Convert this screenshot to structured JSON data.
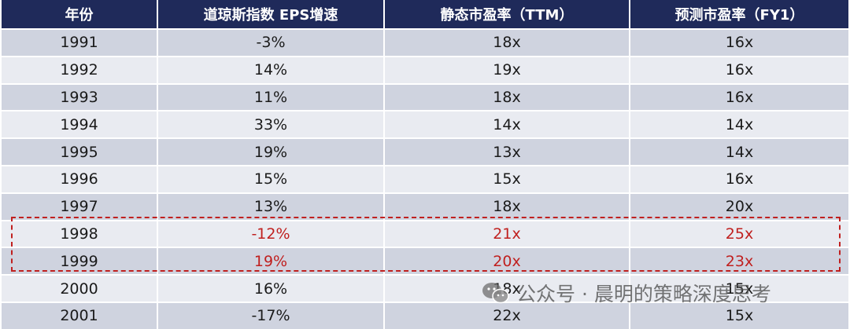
{
  "table": {
    "headers": [
      "年份",
      "道琼斯指数 EPS增速",
      "静态市盈率（TTM）",
      "预测市盈率（FY1）"
    ],
    "rows": [
      {
        "year": "1991",
        "eps_growth": "-3%",
        "pe_ttm": "18x",
        "pe_fy1": "16x"
      },
      {
        "year": "1992",
        "eps_growth": "14%",
        "pe_ttm": "19x",
        "pe_fy1": "16x"
      },
      {
        "year": "1993",
        "eps_growth": "11%",
        "pe_ttm": "18x",
        "pe_fy1": "16x"
      },
      {
        "year": "1994",
        "eps_growth": "33%",
        "pe_ttm": "14x",
        "pe_fy1": "14x"
      },
      {
        "year": "1995",
        "eps_growth": "19%",
        "pe_ttm": "13x",
        "pe_fy1": "14x"
      },
      {
        "year": "1996",
        "eps_growth": "15%",
        "pe_ttm": "15x",
        "pe_fy1": "16x"
      },
      {
        "year": "1997",
        "eps_growth": "13%",
        "pe_ttm": "18x",
        "pe_fy1": "20x"
      },
      {
        "year": "1998",
        "eps_growth": "-12%",
        "pe_ttm": "21x",
        "pe_fy1": "25x"
      },
      {
        "year": "1999",
        "eps_growth": "19%",
        "pe_ttm": "20x",
        "pe_fy1": "23x"
      },
      {
        "year": "2000",
        "eps_growth": "16%",
        "pe_ttm": "18x",
        "pe_fy1": "15x"
      },
      {
        "year": "2001",
        "eps_growth": "-17%",
        "pe_ttm": "22x",
        "pe_fy1": "15x"
      }
    ]
  },
  "highlight": {
    "color": "#c0201f"
  },
  "colors": {
    "header_bg": "#1f2a5a",
    "row_odd": "#cfd3df",
    "row_even": "#e9ebf1"
  },
  "watermark": {
    "icon": "wechat-icon",
    "text": "公众号 · 晨明的策略深度思考"
  }
}
